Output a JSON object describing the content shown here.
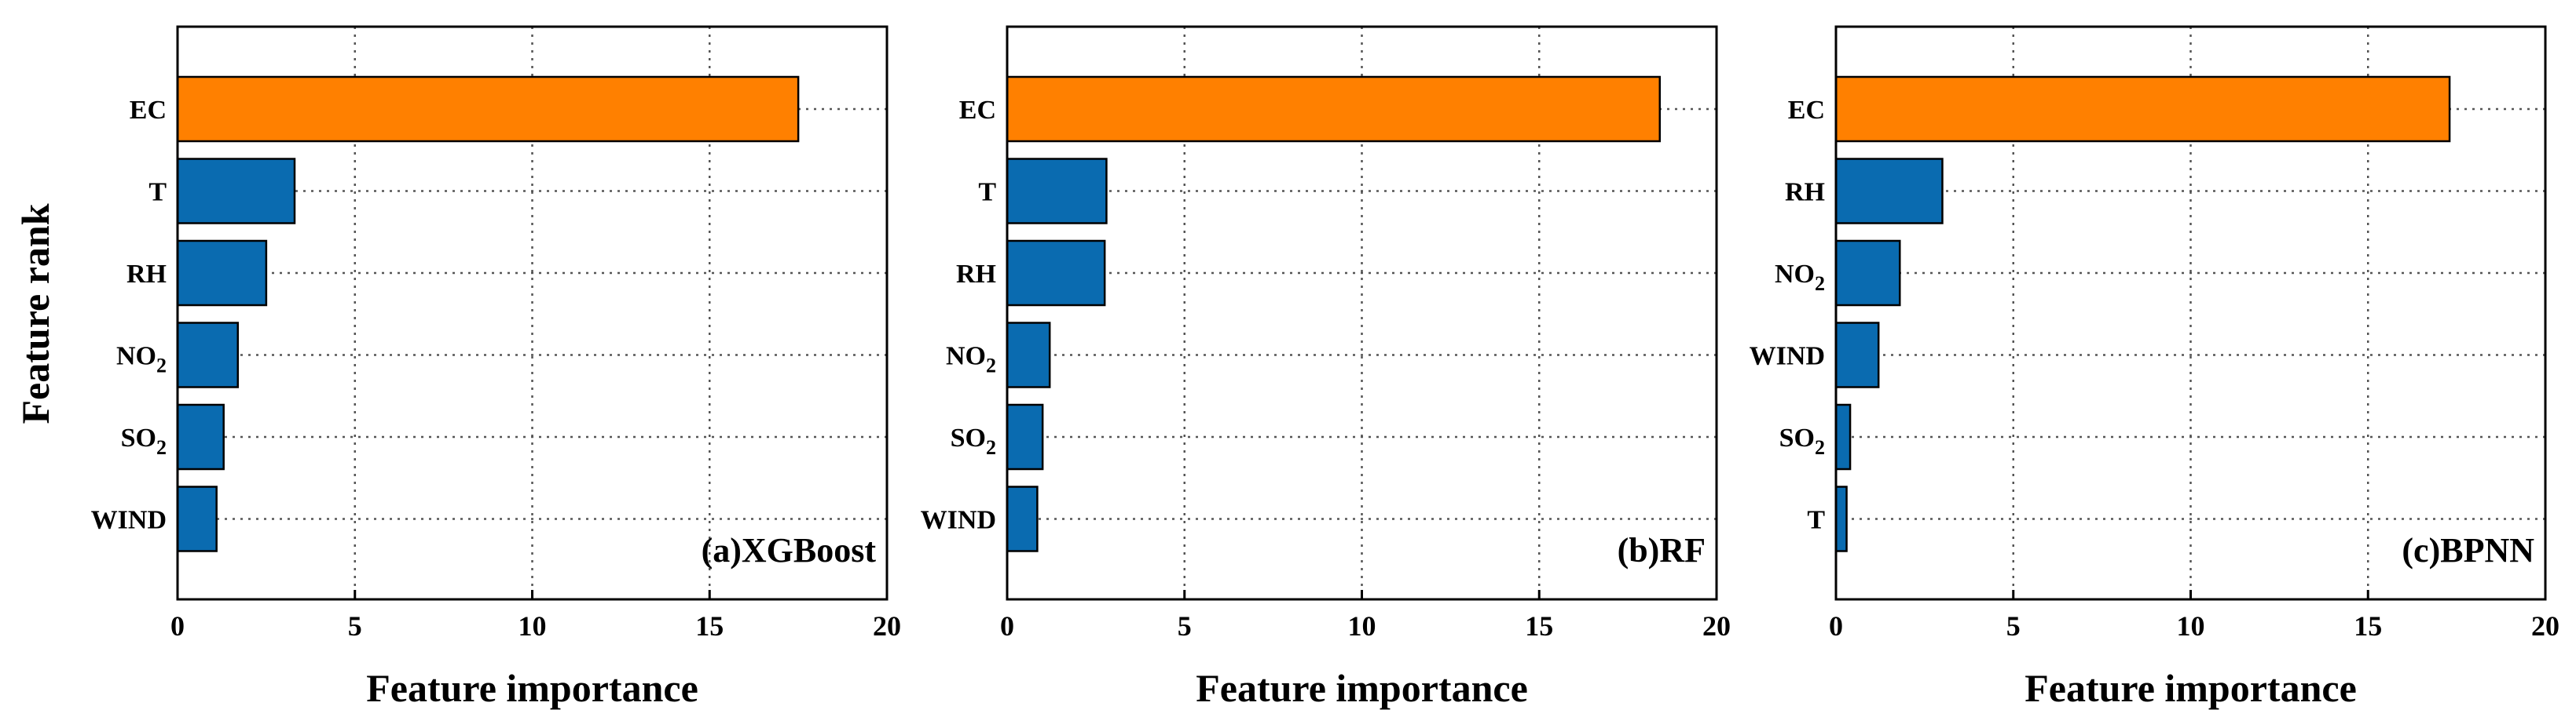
{
  "figure": {
    "y_axis_title": "Feature rank"
  },
  "chart_data": [
    {
      "type": "bar",
      "orientation": "horizontal",
      "title": "(a)XGBoost",
      "xlabel": "Feature importance",
      "ylabel": "Feature rank",
      "xlim": [
        0,
        20
      ],
      "xticks": [
        0,
        5,
        10,
        15,
        20
      ],
      "grid": true,
      "categories": [
        "EC",
        "T",
        "RH",
        "NO₂",
        "SO₂",
        "WIND"
      ],
      "values": [
        17.5,
        3.3,
        2.5,
        1.7,
        1.3,
        1.1
      ],
      "colors": [
        "#FF8000",
        "#0A6BB0",
        "#0A6BB0",
        "#0A6BB0",
        "#0A6BB0",
        "#0A6BB0"
      ]
    },
    {
      "type": "bar",
      "orientation": "horizontal",
      "title": "(b)RF",
      "xlabel": "Feature importance",
      "ylabel": "",
      "xlim": [
        0,
        20
      ],
      "xticks": [
        0,
        5,
        10,
        15,
        20
      ],
      "grid": true,
      "categories": [
        "EC",
        "T",
        "RH",
        "NO₂",
        "SO₂",
        "WIND"
      ],
      "values": [
        18.4,
        2.8,
        2.75,
        1.2,
        1.0,
        0.85
      ],
      "colors": [
        "#FF8000",
        "#0A6BB0",
        "#0A6BB0",
        "#0A6BB0",
        "#0A6BB0",
        "#0A6BB0"
      ]
    },
    {
      "type": "bar",
      "orientation": "horizontal",
      "title": "(c)BPNN",
      "xlabel": "Feature importance",
      "ylabel": "",
      "xlim": [
        0,
        20
      ],
      "xticks": [
        0,
        5,
        10,
        15,
        20
      ],
      "grid": true,
      "categories": [
        "EC",
        "RH",
        "NO₂",
        "WIND",
        "SO₂",
        "T"
      ],
      "values": [
        17.3,
        3.0,
        1.8,
        1.2,
        0.4,
        0.3
      ],
      "colors": [
        "#FF8000",
        "#0A6BB0",
        "#0A6BB0",
        "#0A6BB0",
        "#0A6BB0",
        "#0A6BB0"
      ]
    }
  ]
}
